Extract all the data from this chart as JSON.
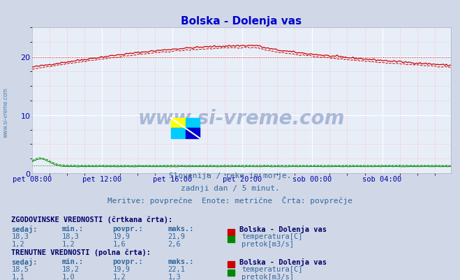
{
  "title": "Bolska - Dolenja vas",
  "title_color": "#0000cc",
  "bg_color": "#d0d8e8",
  "plot_bg_color": "#e8eef8",
  "grid_color_major": "#ffffff",
  "grid_color_minor": "#ffaaaa",
  "tick_color": "#0000aa",
  "x_tick_labels": [
    "pet 08:00",
    "pet 12:00",
    "pet 16:00",
    "pet 20:00",
    "sob 00:00",
    "sob 04:00"
  ],
  "x_tick_positions": [
    0,
    48,
    96,
    144,
    192,
    240
  ],
  "y_ticks": [
    0,
    10,
    20
  ],
  "ylim": [
    0,
    25
  ],
  "xlim": [
    0,
    287
  ],
  "temp_color": "#cc0000",
  "pretok_color": "#008800",
  "watermark_text": "www.si-vreme.com",
  "watermark_color": "#1a3a8a",
  "watermark_alpha": 0.3,
  "subtitle1": "Slovenija / reke in morje.",
  "subtitle2": "zadnji dan / 5 minut.",
  "subtitle3": "Meritve: povprečne  Enote: metrične  Črta: povprečje",
  "subtitle_color": "#336699",
  "table_header1": "ZGODOVINSKE VREDNOSTI (črtkana črta):",
  "table_header2": "TRENUTNE VREDNOSTI (polna črta):",
  "table_color_bold": "#000066",
  "table_color_data": "#336699",
  "col_headers": [
    "sedaj:",
    "min.:",
    "povpr.:",
    "maks.:"
  ],
  "hist_temp": [
    "18,3",
    "18,3",
    "19,9",
    "21,9"
  ],
  "hist_pretok": [
    "1,2",
    "1,2",
    "1,6",
    "2,6"
  ],
  "curr_temp": [
    "18,5",
    "18,2",
    "19,9",
    "22,1"
  ],
  "curr_pretok": [
    "1,1",
    "1,0",
    "1,2",
    "1,3"
  ],
  "station_name": "Bolska - Dolenja vas",
  "legend_temp": "temperatura[C]",
  "legend_pretok": "pretok[m3/s]",
  "n_points": 288,
  "temp_avg_val": 19.9,
  "pretok_avg_val": 1.4,
  "left_label": "www.si-vreme.com"
}
